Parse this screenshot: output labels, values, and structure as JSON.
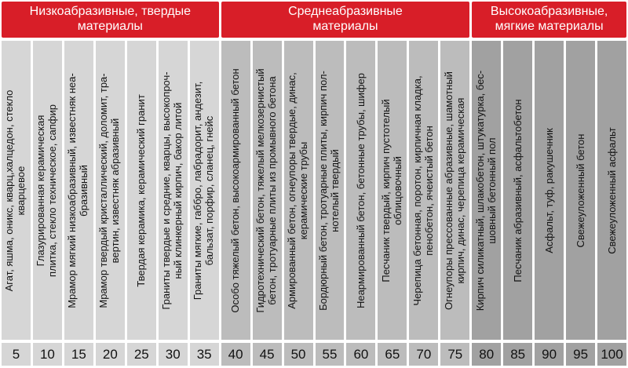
{
  "chart_data": {
    "type": "table",
    "title": "",
    "legend_position": "none",
    "group_headers": [
      {
        "label": "Низкоабразивные, твердые\nматериалы",
        "span": 7,
        "value_range": "5-35"
      },
      {
        "label": "Среднеабразивные\nматериалы",
        "span": 8,
        "value_range": "40-75"
      },
      {
        "label": "Высокоабразивные,\nмягкие материалы",
        "span": 5,
        "value_range": "80-100"
      }
    ],
    "columns": [
      {
        "value": 5,
        "group": 1,
        "material": "Агат, яшма, оникс, кварц,халцедон, стекло\nкварцевое"
      },
      {
        "value": 10,
        "group": 1,
        "material": "Глазурированная керамическая\nплитка, стекло техническое, сапфир"
      },
      {
        "value": 15,
        "group": 1,
        "material": "Мрамор мягкий низкоабразивный, известняк неа-\nбразивный"
      },
      {
        "value": 20,
        "group": 1,
        "material": "Мрамор твердый кристаллический, доломит, тра-\nвертин, известняк абразивный"
      },
      {
        "value": 25,
        "group": 1,
        "material": "Твердая керамика, керамический гранит"
      },
      {
        "value": 30,
        "group": 1,
        "material": "Граниты твердые и средние, кварцы, высокопроч-\nный клинкерный кирпич, бакор литой"
      },
      {
        "value": 35,
        "group": 1,
        "material": "Граниты мягкие, габбро, лабрадорит, андезит,\nбальзат, порфир, сланец, гнейс"
      },
      {
        "value": 40,
        "group": 2,
        "material": "Особо тяжелый бетон, высокоармированный бетон"
      },
      {
        "value": 45,
        "group": 2,
        "material": "Гидротехнический бетон, тяжелый мелкозернистый\nбетон, тротуарные плиты из промывного бетона"
      },
      {
        "value": 50,
        "group": 2,
        "material": "Армированный бетон, огнеупоры твердые, динас,\nкерамические трубы"
      },
      {
        "value": 55,
        "group": 2,
        "material": "Бордюрный бетон, тротуарные плиты, кирпич пол-\nнотелый твердый"
      },
      {
        "value": 60,
        "group": 2,
        "material": "Неармированный бетон, бетонные трубы, шифер"
      },
      {
        "value": 65,
        "group": 2,
        "material": "Песчаник твердый, кирпич пустотелый\nоблицовочный"
      },
      {
        "value": 70,
        "group": 2,
        "material": "Черепица бетонная, поротон, кирпичная кладка,\nпенобетон, ячеистый бетон"
      },
      {
        "value": 75,
        "group": 2,
        "material": "Огнеупоры прессованные абразивные, шамотный\nкирпич, динас, черепица керамическая"
      },
      {
        "value": 80,
        "group": 3,
        "material": "Кирпич силикатный, шлакобетон, штукатурка, бес-\nшовный бетонный пол"
      },
      {
        "value": 85,
        "group": 3,
        "material": "Песчаник абразивный, асфальтобетон"
      },
      {
        "value": 90,
        "group": 3,
        "material": "Асфальт, туф, ракушечник"
      },
      {
        "value": 95,
        "group": 3,
        "material": "Свежеуложенный бетон"
      },
      {
        "value": 100,
        "group": 3,
        "material": "Свежеуложенный асфальт"
      }
    ]
  },
  "theme": {
    "header_red": "#d81e28",
    "header_text": "#ffffff",
    "group1_fill": "#d6d6d6",
    "group2_fill": "#bcbcbc",
    "group3_fill": "#a1a1a1",
    "gap_white": "#ffffff",
    "text_black": "#121212"
  }
}
